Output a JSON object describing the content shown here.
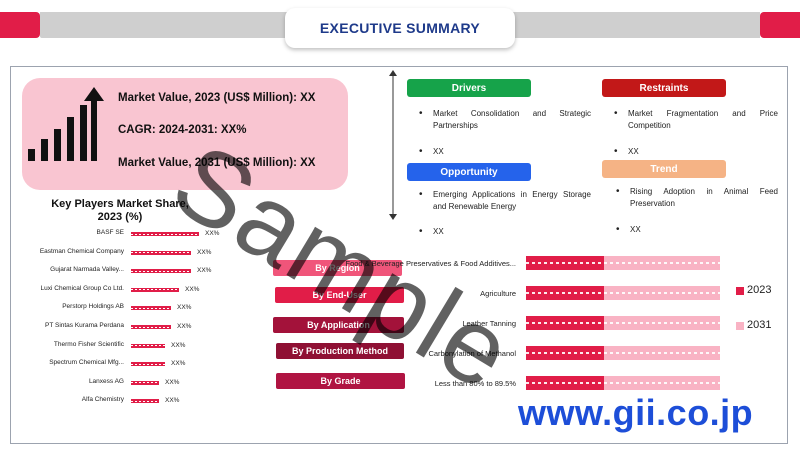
{
  "title": "EXECUTIVE SUMMARY",
  "colors": {
    "accent": "#e11d48",
    "title": "#1e3a8a",
    "drivers": "#16a34a",
    "restraints": "#c21818",
    "opportunity": "#2563eb",
    "trend": "#f5b385",
    "series_2023": "#e11d48",
    "series_2031": "#f9b3c4"
  },
  "market": {
    "icon": "growth-bars-arrow-icon",
    "line1": "Market Value, 2023 (US$ Million): XX",
    "line2": "CAGR: 2024-2031: XX%",
    "line3": "Market Value, 2031 (US$ Million): XX"
  },
  "drivers": {
    "label": "Drivers",
    "items": [
      "Market Consolidation and Strategic Partnerships",
      "XX"
    ]
  },
  "restraints": {
    "label": "Restraints",
    "items": [
      "Market Fragmentation and Price Competition",
      "XX"
    ]
  },
  "opportunity": {
    "label": "Opportunity",
    "items": [
      "Emerging Applications in Energy Storage and Renewable Energy",
      "XX"
    ]
  },
  "trend": {
    "label": "Trend",
    "items": [
      "Rising Adoption in Animal Feed Preservation",
      "XX"
    ]
  },
  "key_players": {
    "title": "Key Players Market Share, 2023 (%)",
    "players": [
      {
        "name": "BASF SE",
        "value": "XX%"
      },
      {
        "name": "Eastman Chemical Company",
        "value": "XX%"
      },
      {
        "name": "Gujarat Narmada Valley...",
        "value": "XX%"
      },
      {
        "name": "Luxi Chemical Group Co Ltd.",
        "value": "XX%"
      },
      {
        "name": "Perstorp Holdings AB",
        "value": "XX%"
      },
      {
        "name": "PT Sintas Kurama Perdana",
        "value": "XX%"
      },
      {
        "name": "Thermo Fisher Scientific",
        "value": "XX%"
      },
      {
        "name": "Spectrum Chemical Mfg...",
        "value": "XX%"
      },
      {
        "name": "Lanxess AG",
        "value": "XX%"
      },
      {
        "name": "Alfa Chemistry",
        "value": "XX%"
      }
    ]
  },
  "segments": [
    "By Region",
    "By End-User",
    "By Application",
    "By Production Method",
    "By Grade"
  ],
  "chart": {
    "categories": [
      "Food & Beverage Preservatives & Food Additives...",
      "Agriculture",
      "Leather Tanning",
      "Carbonylation of Methanol",
      "Less than 80% to 89.5%"
    ],
    "legend": [
      "2023",
      "2031"
    ]
  },
  "watermark": "Sample",
  "site": "www.gii.co.jp"
}
